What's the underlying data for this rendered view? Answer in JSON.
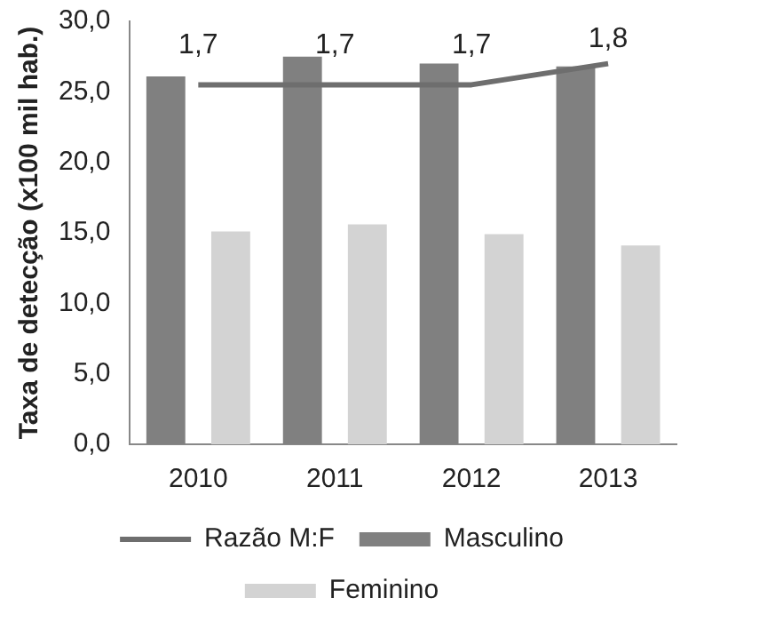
{
  "chart_data": {
    "type": "bar",
    "ylabel": "Taxa de detecção (x100 mil hab.)",
    "categories": [
      "2010",
      "2011",
      "2012",
      "2013"
    ],
    "series": [
      {
        "name": "Masculino",
        "color": "#808080",
        "values": [
          26.1,
          27.5,
          27.0,
          26.8
        ]
      },
      {
        "name": "Feminino",
        "color": "#d3d3d3",
        "values": [
          15.1,
          15.6,
          14.9,
          14.1
        ]
      },
      {
        "name": "Razão M:F",
        "type": "line",
        "axis": "y2",
        "color": "#6e6e6e",
        "values": [
          1.7,
          1.7,
          1.7,
          1.8
        ],
        "value_labels": [
          "1,7",
          "1,7",
          "1,7",
          "1,8"
        ]
      }
    ],
    "ylim": [
      0,
      30
    ],
    "yticks": [
      {
        "value": 0,
        "label": "0,0"
      },
      {
        "value": 5,
        "label": "5,0"
      },
      {
        "value": 10,
        "label": "10,0"
      },
      {
        "value": 15,
        "label": "15,0"
      },
      {
        "value": 20,
        "label": "20,0"
      },
      {
        "value": 25,
        "label": "25,0"
      },
      {
        "value": 30,
        "label": "30,0"
      }
    ],
    "y2lim": [
      0,
      2
    ],
    "grid": false,
    "legend": "bottom",
    "marker": "none",
    "line_style": "solid"
  }
}
